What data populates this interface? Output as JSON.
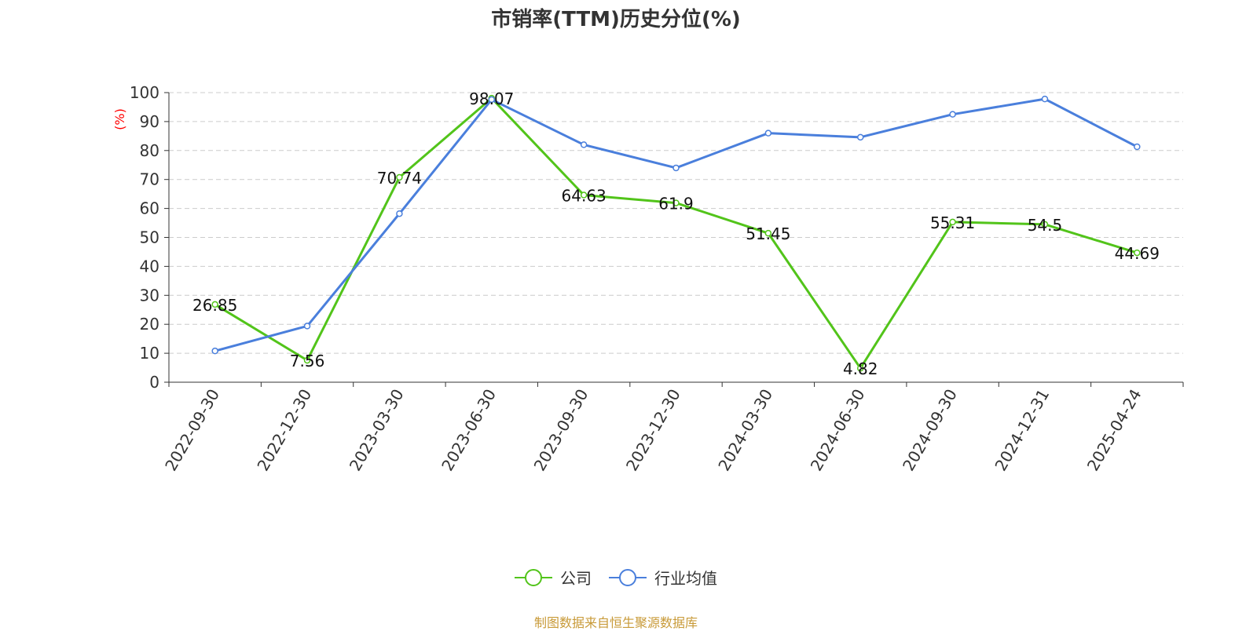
{
  "chart_data": {
    "type": "line",
    "title": "市销率(TTM)历史分位(%)",
    "ylabel": "(%)",
    "xlabel": "",
    "categories": [
      "2022-09-30",
      "2022-12-30",
      "2023-03-30",
      "2023-06-30",
      "2023-09-30",
      "2023-12-30",
      "2024-03-30",
      "2024-06-30",
      "2024-09-30",
      "2024-12-31",
      "2025-04-24"
    ],
    "ylim": [
      0,
      100
    ],
    "yticks": [
      0,
      10,
      20,
      30,
      40,
      50,
      60,
      70,
      80,
      90,
      100
    ],
    "grid": true,
    "legend_position": "bottom",
    "series": [
      {
        "name": "公司",
        "color": "#52c41a",
        "values": [
          26.85,
          7.56,
          70.74,
          98.07,
          64.63,
          61.9,
          51.45,
          4.82,
          55.31,
          54.5,
          44.69
        ],
        "labels": [
          "26.85",
          "7.56",
          "70.74",
          "98.07",
          "64.63",
          "61.9",
          "51.45",
          "4.82",
          "55.31",
          "54.5",
          "44.69"
        ]
      },
      {
        "name": "行业均值",
        "color": "#4a7fdc",
        "values": [
          10.8,
          19.4,
          58.2,
          97.6,
          82.0,
          74.0,
          86.0,
          84.6,
          92.5,
          97.8,
          81.3
        ]
      }
    ],
    "source": "制图数据来自恒生聚源数据库"
  }
}
